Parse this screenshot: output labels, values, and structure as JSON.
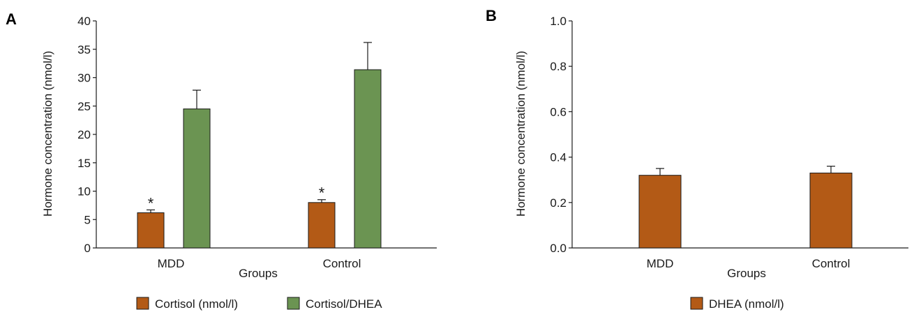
{
  "chart_data": [
    {
      "panel": "A",
      "type": "bar",
      "xlabel": "Groups",
      "ylabel": "Hormone concentration (nmol/l)",
      "categories": [
        "MDD",
        "Control"
      ],
      "ylim": [
        0,
        40
      ],
      "yticks": [
        "0",
        "5",
        "10",
        "15",
        "20",
        "25",
        "30",
        "35",
        "40"
      ],
      "series": [
        {
          "name": "Cortisol (nmol/l)",
          "color": "#b35a16",
          "values": [
            6.2,
            8.0
          ],
          "errors": [
            0.5,
            0.5
          ],
          "annotations": [
            "*",
            "*"
          ]
        },
        {
          "name": "Cortisol/DHEA",
          "color": "#6b9452",
          "values": [
            24.5,
            31.4
          ],
          "errors": [
            3.3,
            4.8
          ],
          "annotations": [
            "",
            ""
          ]
        }
      ],
      "legend_position": "bottom"
    },
    {
      "panel": "B",
      "type": "bar",
      "xlabel": "Groups",
      "ylabel": "Hormone concentration (nmol/l)",
      "categories": [
        "MDD",
        "Control"
      ],
      "ylim": [
        0,
        1.0
      ],
      "yticks": [
        "0.0",
        "0.2",
        "0.4",
        "0.6",
        "0.8",
        "1.0"
      ],
      "series": [
        {
          "name": "DHEA (nmol/l)",
          "color": "#b35a16",
          "values": [
            0.32,
            0.33
          ],
          "errors": [
            0.03,
            0.03
          ],
          "annotations": [
            "",
            ""
          ]
        }
      ],
      "legend_position": "bottom"
    }
  ]
}
